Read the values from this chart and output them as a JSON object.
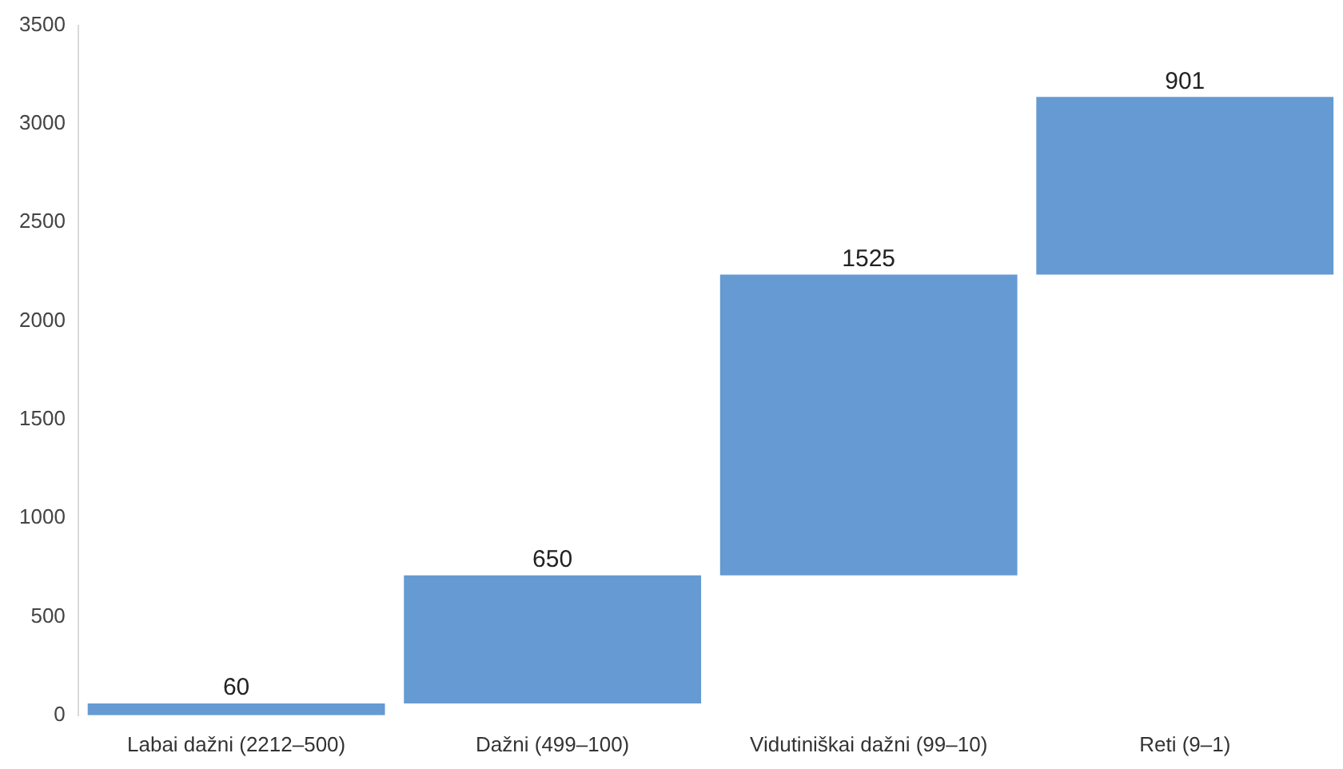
{
  "chart_data": {
    "type": "bar",
    "categories": [
      "Labai dažni (2212–500)",
      "Dažni (499–100)",
      "Vidutiniškai dažni (99–10)",
      "Reti (9–1)"
    ],
    "values": [
      60,
      650,
      1525,
      901
    ],
    "base": [
      0,
      60,
      710,
      2235
    ],
    "color": "#659ad2",
    "ylim": [
      0,
      3500
    ],
    "yticks": [
      0,
      500,
      1000,
      1500,
      2000,
      2500,
      3000,
      3500
    ],
    "grid": false,
    "legend": false,
    "data_labels": true
  }
}
